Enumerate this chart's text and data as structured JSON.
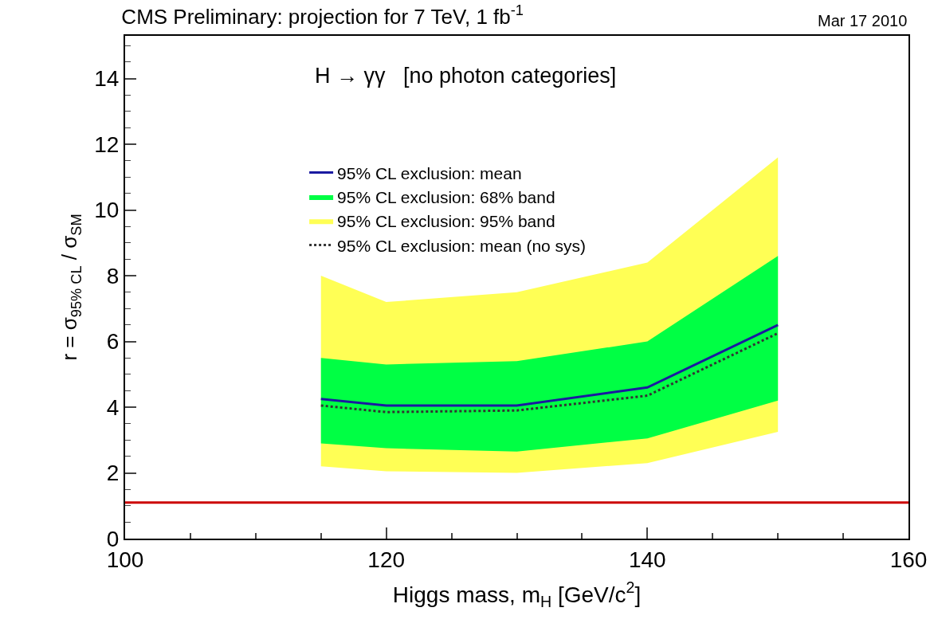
{
  "chart_data": {
    "type": "line",
    "title": "CMS Preliminary: projection for 7 TeV, 1 fb$^{-1}$",
    "xlabel": "Higgs mass, m$_{H}$ [GeV/c$^{2}$]",
    "ylabel": "r = σ$_{95% CL}$ / σ$_{SM}$",
    "annotations": [
      "Mar 17 2010",
      "H → γγ   [no photon categories]"
    ],
    "x": [
      115,
      120,
      130,
      140,
      150
    ],
    "series": [
      {
        "name": "95% CL exclusion: mean",
        "color": "#1a1aa0",
        "values": [
          4.25,
          4.05,
          4.05,
          4.6,
          6.5
        ]
      },
      {
        "name": "95% CL exclusion: 68% band",
        "type": "area",
        "color": "#00ff44",
        "values": [
          null,
          null,
          null,
          null,
          null
        ],
        "lower": [
          2.9,
          2.75,
          2.65,
          3.05,
          4.2
        ],
        "upper": [
          5.5,
          5.3,
          5.4,
          6.0,
          8.6
        ]
      },
      {
        "name": "95% CL exclusion: 95% band",
        "type": "area",
        "color": "#ffff55",
        "values": [
          null,
          null,
          null,
          null,
          null
        ],
        "lower": [
          2.2,
          2.05,
          2.0,
          2.3,
          3.25
        ],
        "upper": [
          8.0,
          7.2,
          7.5,
          8.4,
          11.6
        ]
      },
      {
        "name": "95% CL exclusion: mean (no sys)",
        "type": "line",
        "line_style": "dotted",
        "color": "#333333",
        "values": [
          4.05,
          3.85,
          3.9,
          4.35,
          6.25
        ]
      }
    ],
    "ref_lines": [
      {
        "axis": "y",
        "value": 1.1,
        "color": "#cc0000"
      }
    ],
    "xlim": [
      100,
      160
    ],
    "xticks": [
      100,
      120,
      140,
      160
    ],
    "ylim": [
      0,
      15.3
    ],
    "yticks": [
      0,
      2,
      4,
      6,
      8,
      10,
      12,
      14
    ],
    "grid": false,
    "legend": "top"
  }
}
